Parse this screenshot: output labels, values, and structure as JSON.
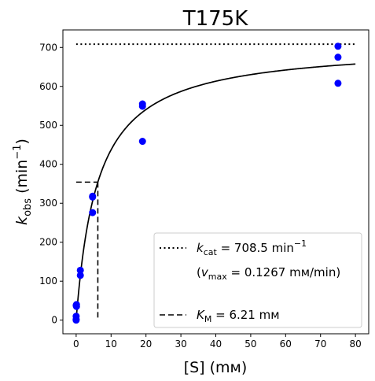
{
  "chart_data": {
    "type": "scatter",
    "title": "T175K",
    "xlabel": "[S] (mм)",
    "ylabel": "k_obs (min⁻¹)",
    "xlim": [
      -3.8,
      83.8
    ],
    "ylim": [
      -35,
      745
    ],
    "xticks": [
      0,
      10,
      20,
      30,
      40,
      50,
      60,
      70,
      80
    ],
    "yticks": [
      0,
      100,
      200,
      300,
      400,
      500,
      600,
      700
    ],
    "grid": false,
    "legend_position": "lower-right",
    "colors": {
      "points": "#0000ff",
      "lines": "#000000"
    },
    "series": [
      {
        "kind": "scatter",
        "x": [
          0,
          0,
          0,
          0,
          0.1,
          0.1,
          1.2,
          1.2,
          4.7,
          4.7,
          4.7,
          19,
          19,
          19,
          75,
          75,
          75
        ],
        "y": [
          0,
          2,
          10,
          38,
          40,
          35,
          128,
          115,
          318,
          316,
          276,
          555,
          549,
          459,
          703,
          675,
          608
        ]
      },
      {
        "kind": "curve",
        "equation": "kcat*S/(KM+S)",
        "kcat": 708.5,
        "KM": 6.21,
        "x_range": [
          0,
          80
        ]
      },
      {
        "kind": "hline-dotted",
        "y": 708.5,
        "x_range": [
          0,
          80
        ]
      },
      {
        "kind": "dashed-KM",
        "x": 6.21,
        "y": 354.25,
        "x_start": 0,
        "y_start": 0
      }
    ],
    "legend": {
      "kcat_label": "k",
      "kcat_sub": "cat",
      "kcat_text": " = 708.5 min",
      "kcat_sup": "−1",
      "vmax_open": "(",
      "vmax_label": "v",
      "vmax_sub": "max",
      "vmax_text": " = 0.1267 mм/min)",
      "km_label": "K",
      "km_sub": "M",
      "km_text": " = 6.21 mм"
    },
    "ylabel_parts": {
      "k": "k",
      "sub": "obs",
      "unit": " (min",
      "sup": "−1",
      "close": ")"
    }
  }
}
